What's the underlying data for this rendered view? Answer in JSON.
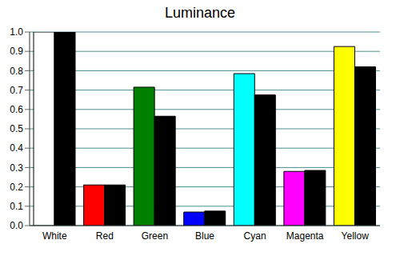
{
  "chart_data": {
    "type": "bar",
    "title": "Luminance",
    "categories": [
      "White",
      "Red",
      "Green",
      "Blue",
      "Cyan",
      "Magenta",
      "Yellow"
    ],
    "series": [
      {
        "colors": [
          "#ffffff",
          "#ff0000",
          "#008000",
          "#0000ff",
          "#00ffff",
          "#ff00ff",
          "#ffff00"
        ],
        "values": [
          1.0,
          0.21,
          0.715,
          0.07,
          0.785,
          0.28,
          0.925
        ]
      },
      {
        "color": "#000000",
        "values": [
          1.0,
          0.21,
          0.565,
          0.075,
          0.675,
          0.285,
          0.82
        ]
      }
    ],
    "ylim": [
      0,
      1
    ],
    "yticks": [
      {
        "value": 0,
        "label": "0.0"
      },
      0.1,
      0.2,
      0.3,
      0.4,
      0.5,
      0.6,
      0.7,
      0.8,
      0.9,
      {
        "value": 1,
        "label": "1.0"
      }
    ],
    "grid": true
  }
}
